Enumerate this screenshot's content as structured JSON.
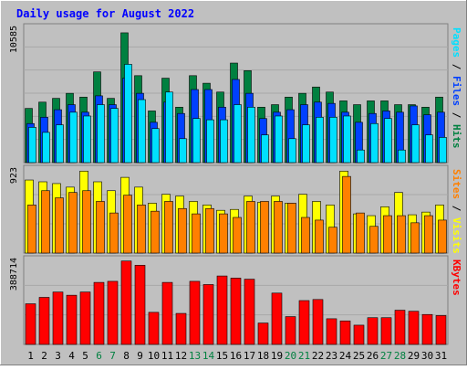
{
  "chart_data": {
    "type": "bar",
    "title": "Daily usage for August 2022",
    "categories": [
      "1",
      "2",
      "3",
      "4",
      "5",
      "6",
      "7",
      "8",
      "9",
      "10",
      "11",
      "12",
      "13",
      "14",
      "15",
      "16",
      "17",
      "18",
      "19",
      "20",
      "21",
      "22",
      "23",
      "24",
      "25",
      "26",
      "27",
      "28",
      "29",
      "30",
      "31"
    ],
    "weekend_days": [
      "6",
      "7",
      "13",
      "14",
      "20",
      "21",
      "27",
      "28"
    ],
    "panels": [
      {
        "id": "hits",
        "max_label": "10585",
        "ylim": [
          0,
          10585
        ],
        "side_label": [
          "Pages",
          "Files",
          "Hits"
        ],
        "series": [
          {
            "name": "Hits",
            "color": "#008040",
            "values": [
              4300,
              4800,
              5100,
              5500,
              5200,
              7200,
              5100,
              10300,
              6900,
              4100,
              6700,
              4400,
              6900,
              6300,
              5600,
              7900,
              7300,
              4400,
              4600,
              5200,
              5500,
              6000,
              5600,
              4900,
              4600,
              4900,
              4900,
              4600,
              4600,
              4400,
              5200
            ]
          },
          {
            "name": "Files",
            "color": "#0040ff",
            "values": [
              3100,
              3600,
              4200,
              4600,
              4000,
              5300,
              4600,
              6700,
              5500,
              3200,
              4800,
              3900,
              5800,
              5800,
              4400,
              6600,
              5500,
              3500,
              4000,
              4200,
              4600,
              4800,
              4700,
              4000,
              3200,
              3900,
              4100,
              4000,
              4500,
              3800,
              4000
            ]
          },
          {
            "name": "Pages",
            "color": "#00e0ff",
            "values": [
              2800,
              2400,
              3000,
              4000,
              3700,
              4600,
              4300,
              7800,
              5000,
              2700,
              5600,
              1900,
              3500,
              3400,
              3400,
              4600,
              4400,
              2200,
              3700,
              1900,
              3000,
              3600,
              3600,
              3700,
              1000,
              3100,
              3500,
              1000,
              3000,
              2200,
              2000
            ]
          }
        ]
      },
      {
        "id": "visits",
        "max_label": "923",
        "ylim": [
          0,
          923
        ],
        "side_label": [
          "Sites",
          "Visits"
        ],
        "series": [
          {
            "name": "Visits",
            "color": "#ffff00",
            "values": [
              820,
              800,
              780,
              740,
              920,
              800,
              700,
              850,
              740,
              560,
              660,
              640,
              580,
              540,
              480,
              490,
              640,
              570,
              640,
              560,
              660,
              580,
              540,
              920,
              440,
              420,
              520,
              680,
              430,
              460,
              540
            ]
          },
          {
            "name": "Sites",
            "color": "#ff8000",
            "values": [
              540,
              700,
              620,
              680,
              700,
              580,
              450,
              650,
              540,
              470,
              580,
              500,
              440,
              500,
              440,
              400,
              580,
              580,
              580,
              560,
              400,
              370,
              290,
              860,
              450,
              300,
              420,
              420,
              340,
              420,
              370
            ]
          }
        ]
      },
      {
        "id": "kbytes",
        "max_label": "388714",
        "ylim": [
          0,
          388714
        ],
        "side_label": [
          "KBytes"
        ],
        "series": [
          {
            "name": "KBytes",
            "color": "#ff0000",
            "values": [
              190000,
              220000,
              245000,
              230000,
              245000,
              290000,
              295000,
              390000,
              370000,
              150000,
              290000,
              145000,
              295000,
              280000,
              320000,
              310000,
              305000,
              100000,
              240000,
              130000,
              205000,
              210000,
              120000,
              110000,
              90000,
              125000,
              125000,
              160000,
              155000,
              140000,
              135000
            ]
          }
        ]
      }
    ]
  }
}
